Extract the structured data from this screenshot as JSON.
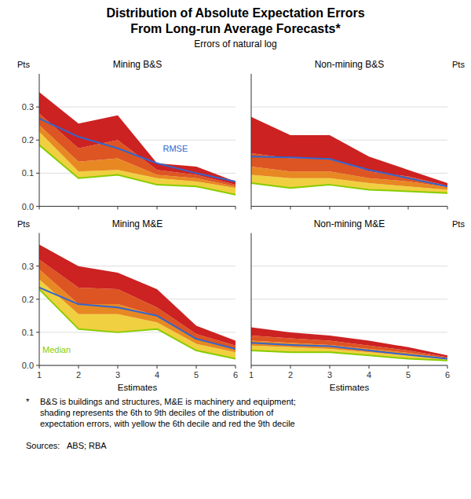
{
  "title": "Distribution of Absolute Expectation Errors\nFrom Long-run Average Forecasts*",
  "subtitle": "Errors of natural log",
  "footnote_marker": "*",
  "footnote": "B&S is buildings and structures, M&E is machinery and equipment;\nshading represents the 6th to 9th deciles of the distribution of\nexpectation errors, with yellow the 6th decile and red the 9th decile",
  "sources": "Sources:   ABS; RBA",
  "chart_data": [
    {
      "type": "area",
      "title": "Mining B&S",
      "ylabel": "Pts",
      "x": [
        1,
        2,
        3,
        4,
        5,
        6
      ],
      "xlim": [
        1,
        6
      ],
      "xticks": [
        1,
        2,
        3,
        4,
        5,
        6
      ],
      "ylim": [
        0.0,
        0.4
      ],
      "yticks": [
        {
          "value": 0.0,
          "label": "0.0"
        },
        0.1,
        0.2,
        0.3
      ],
      "grid": true,
      "tick_labels": "y",
      "series": [
        {
          "type": "line",
          "color": "#88cc00",
          "values": [
            0.185,
            0.085,
            0.095,
            0.065,
            0.06,
            0.035
          ]
        },
        {
          "type": "area",
          "color": "#f0d040",
          "values": [
            0.225,
            0.105,
            0.11,
            0.085,
            0.075,
            0.055
          ]
        },
        {
          "type": "area",
          "color": "#e88822",
          "values": [
            0.245,
            0.135,
            0.145,
            0.095,
            0.085,
            0.06
          ]
        },
        {
          "type": "area",
          "color": "#dd5522",
          "values": [
            0.28,
            0.175,
            0.2,
            0.11,
            0.095,
            0.065
          ]
        },
        {
          "type": "area",
          "color": "#cc2222",
          "values": [
            0.345,
            0.25,
            0.275,
            0.13,
            0.12,
            0.075
          ]
        },
        {
          "type": "line",
          "color": "#3366cc",
          "values": [
            0.265,
            0.21,
            0.175,
            0.13,
            0.1,
            0.075
          ]
        }
      ],
      "annotations": [
        {
          "text": "RMSE",
          "x": 4.15,
          "y": 0.165,
          "color": "#3366cc"
        }
      ]
    },
    {
      "type": "area",
      "title": "Non-mining B&S",
      "ylabel": "Pts",
      "x": [
        1,
        2,
        3,
        4,
        5,
        6
      ],
      "xlim": [
        1,
        6
      ],
      "xticks": [
        1,
        2,
        3,
        4,
        5,
        6
      ],
      "ylim": [
        0.0,
        0.4
      ],
      "yticks": [
        {
          "value": 0.0,
          "label": "0.0"
        },
        0.1,
        0.2,
        0.3
      ],
      "grid": true,
      "tick_labels": false,
      "series": [
        {
          "type": "line",
          "color": "#88cc00",
          "values": [
            0.07,
            0.055,
            0.065,
            0.05,
            0.045,
            0.04
          ]
        },
        {
          "type": "area",
          "color": "#f0d040",
          "values": [
            0.095,
            0.085,
            0.085,
            0.07,
            0.06,
            0.05
          ]
        },
        {
          "type": "area",
          "color": "#e88822",
          "values": [
            0.12,
            0.105,
            0.105,
            0.085,
            0.075,
            0.058
          ]
        },
        {
          "type": "area",
          "color": "#dd5522",
          "values": [
            0.16,
            0.145,
            0.145,
            0.105,
            0.09,
            0.062
          ]
        },
        {
          "type": "area",
          "color": "#cc2222",
          "values": [
            0.27,
            0.215,
            0.215,
            0.15,
            0.11,
            0.07
          ]
        },
        {
          "type": "line",
          "color": "#3366cc",
          "values": [
            0.15,
            0.148,
            0.143,
            0.11,
            0.085,
            0.06
          ]
        }
      ]
    },
    {
      "type": "area",
      "title": "Mining M&E",
      "ylabel": "Pts",
      "xlabel": "Estimates",
      "x": [
        1,
        2,
        3,
        4,
        5,
        6
      ],
      "xlim": [
        1,
        6
      ],
      "xticks": [
        1,
        2,
        3,
        4,
        5,
        6
      ],
      "ylim": [
        0.0,
        0.4
      ],
      "yticks": [
        {
          "value": 0.0,
          "label": "0.0"
        },
        0.1,
        0.2,
        0.3
      ],
      "grid": true,
      "series": [
        {
          "type": "line",
          "color": "#88cc00",
          "values": [
            0.23,
            0.11,
            0.1,
            0.11,
            0.045,
            0.02
          ]
        },
        {
          "type": "area",
          "color": "#f0d040",
          "values": [
            0.26,
            0.155,
            0.155,
            0.13,
            0.065,
            0.04
          ]
        },
        {
          "type": "area",
          "color": "#e88822",
          "values": [
            0.29,
            0.185,
            0.185,
            0.15,
            0.08,
            0.05
          ]
        },
        {
          "type": "area",
          "color": "#dd5522",
          "values": [
            0.32,
            0.235,
            0.23,
            0.175,
            0.095,
            0.06
          ]
        },
        {
          "type": "area",
          "color": "#cc2222",
          "values": [
            0.365,
            0.3,
            0.28,
            0.23,
            0.12,
            0.075
          ]
        },
        {
          "type": "line",
          "color": "#3366cc",
          "values": [
            0.235,
            0.185,
            0.175,
            0.15,
            0.08,
            0.05
          ]
        }
      ],
      "annotations": [
        {
          "text": "Median",
          "x": 1.08,
          "y": 0.038,
          "color": "#88cc00"
        }
      ]
    },
    {
      "type": "area",
      "title": "Non-mining M&E",
      "ylabel": "Pts",
      "xlabel": "Estimates",
      "x": [
        1,
        2,
        3,
        4,
        5,
        6
      ],
      "xlim": [
        1,
        6
      ],
      "xticks": [
        1,
        2,
        3,
        4,
        5,
        6
      ],
      "ylim": [
        0.0,
        0.4
      ],
      "yticks": [
        {
          "value": 0.0,
          "label": "0.0"
        },
        0.1,
        0.2,
        0.3
      ],
      "grid": true,
      "tick_labels": "x",
      "series": [
        {
          "type": "line",
          "color": "#88cc00",
          "values": [
            0.045,
            0.04,
            0.04,
            0.03,
            0.02,
            0.015
          ]
        },
        {
          "type": "area",
          "color": "#f0d040",
          "values": [
            0.06,
            0.055,
            0.05,
            0.04,
            0.03,
            0.018
          ]
        },
        {
          "type": "area",
          "color": "#e88822",
          "values": [
            0.075,
            0.068,
            0.062,
            0.05,
            0.038,
            0.022
          ]
        },
        {
          "type": "area",
          "color": "#dd5522",
          "values": [
            0.09,
            0.082,
            0.075,
            0.06,
            0.045,
            0.025
          ]
        },
        {
          "type": "area",
          "color": "#cc2222",
          "values": [
            0.115,
            0.1,
            0.09,
            0.075,
            0.055,
            0.03
          ]
        },
        {
          "type": "line",
          "color": "#3366cc",
          "values": [
            0.068,
            0.062,
            0.058,
            0.045,
            0.032,
            0.02
          ]
        }
      ]
    }
  ]
}
